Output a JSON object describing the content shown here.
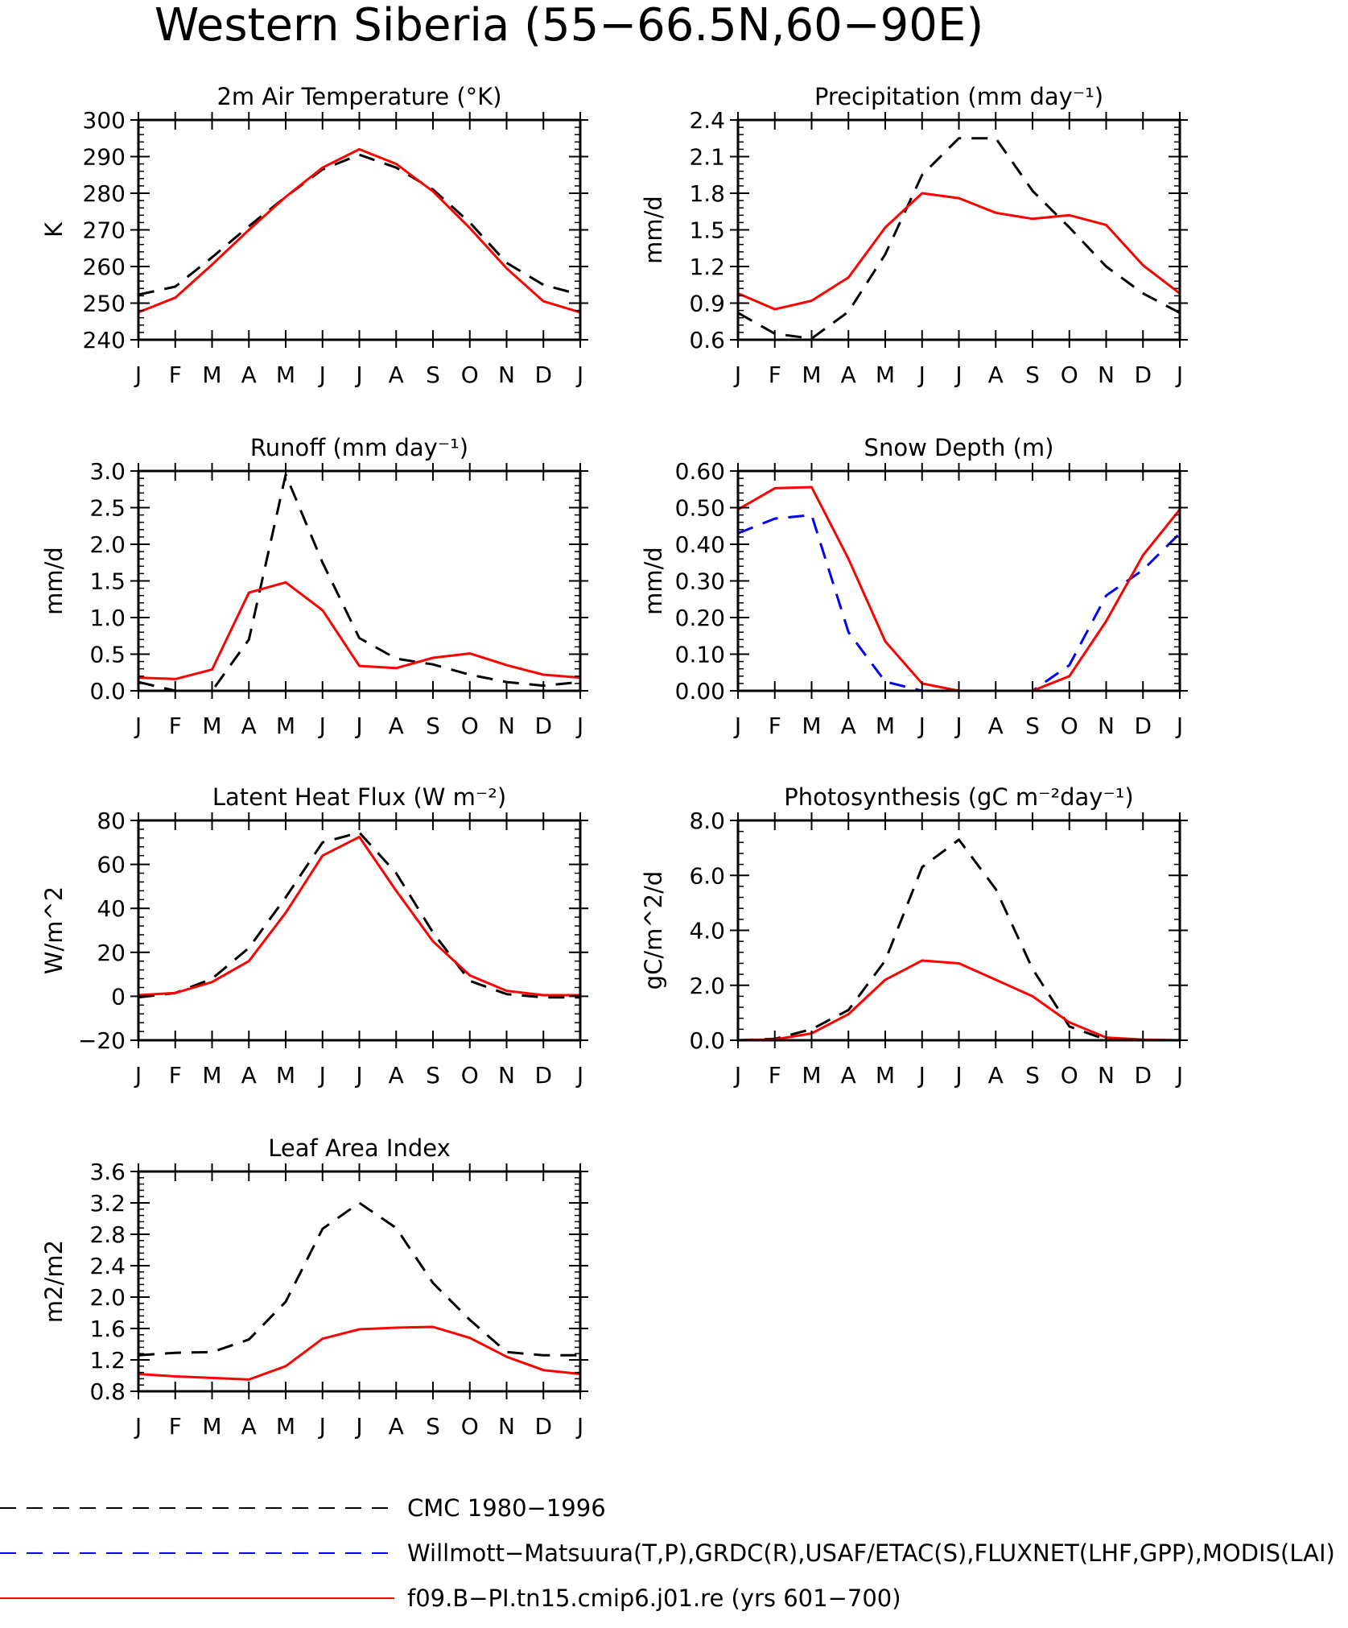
{
  "page_title": "Western Siberia (55−66.5N,60−90E)",
  "month_ticks": [
    "J",
    "F",
    "M",
    "A",
    "M",
    "J",
    "J",
    "A",
    "S",
    "O",
    "N",
    "D",
    "J"
  ],
  "legend": [
    {
      "label": "CMC 1980−1996",
      "color": "#000000",
      "style": "dashed"
    },
    {
      "label": "Willmott−Matsuura(T,P),GRDC(R),USAF/ETAC(S),FLUXNET(LHF,GPP),MODIS(LAI)",
      "color": "#0000ff",
      "style": "dashed"
    },
    {
      "label": "f09.B−PI.tn15.cmip6.j01.re (yrs 601−700)",
      "color": "#ff0000",
      "style": "solid"
    }
  ],
  "chart_data": [
    {
      "type": "line",
      "title": "2m Air Temperature (°K)",
      "ylabel": "K",
      "ylim": [
        240,
        300
      ],
      "yticks": [
        240,
        250,
        260,
        270,
        280,
        290,
        300
      ],
      "ytick_labels": [
        "240",
        "250",
        "260",
        "270",
        "280",
        "290",
        "300"
      ],
      "categories": [
        "J",
        "F",
        "M",
        "A",
        "M",
        "J",
        "J",
        "A",
        "S",
        "O",
        "N",
        "D",
        "J"
      ],
      "series": [
        {
          "ref": 0,
          "values": [
            252.3,
            254.5,
            262.5,
            271,
            279,
            286.5,
            290.5,
            287,
            281,
            272,
            261,
            255,
            252.3
          ]
        },
        {
          "ref": 2,
          "values": [
            247.5,
            251.5,
            260.5,
            270,
            279,
            287,
            292,
            288,
            280.5,
            270.5,
            259.5,
            250.5,
            247.5
          ]
        }
      ]
    },
    {
      "type": "line",
      "title": "Precipitation (mm day⁻¹)",
      "ylabel": "mm/d",
      "ylim": [
        0.6,
        2.4
      ],
      "yticks": [
        0.6,
        0.9,
        1.2,
        1.5,
        1.8,
        2.1,
        2.4
      ],
      "ytick_labels": [
        "0.6",
        "0.9",
        "1.2",
        "1.5",
        "1.8",
        "2.1",
        "2.4"
      ],
      "categories": [
        "J",
        "F",
        "M",
        "A",
        "M",
        "J",
        "J",
        "A",
        "S",
        "O",
        "N",
        "D",
        "J"
      ],
      "series": [
        {
          "ref": 0,
          "values": [
            0.82,
            0.65,
            0.61,
            0.83,
            1.3,
            1.95,
            2.25,
            2.25,
            1.82,
            1.52,
            1.2,
            0.98,
            0.82
          ]
        },
        {
          "ref": 2,
          "values": [
            0.98,
            0.85,
            0.92,
            1.11,
            1.52,
            1.8,
            1.76,
            1.64,
            1.59,
            1.62,
            1.54,
            1.21,
            0.98
          ]
        }
      ]
    },
    {
      "type": "line",
      "title": "Runoff (mm day⁻¹)",
      "ylabel": "mm/d",
      "ylim": [
        0,
        3.0
      ],
      "yticks": [
        0,
        0.5,
        1.0,
        1.5,
        2.0,
        2.5,
        3.0
      ],
      "ytick_labels": [
        "0.0",
        "0.5",
        "1.0",
        "1.5",
        "2.0",
        "2.5",
        "3.0"
      ],
      "categories": [
        "J",
        "F",
        "M",
        "A",
        "M",
        "J",
        "J",
        "A",
        "S",
        "O",
        "N",
        "D",
        "J"
      ],
      "series": [
        {
          "ref": 0,
          "values": [
            0.12,
            0.0,
            0.0,
            0.7,
            2.95,
            1.75,
            0.72,
            0.44,
            0.36,
            0.22,
            0.12,
            0.07,
            0.12
          ]
        },
        {
          "ref": 2,
          "values": [
            0.18,
            0.16,
            0.29,
            1.34,
            1.48,
            1.1,
            0.34,
            0.31,
            0.45,
            0.51,
            0.35,
            0.22,
            0.18
          ]
        }
      ]
    },
    {
      "type": "line",
      "title": "Snow Depth (m)",
      "ylabel": "mm/d",
      "ylim": [
        0,
        0.6
      ],
      "yticks": [
        0,
        0.1,
        0.2,
        0.3,
        0.4,
        0.5,
        0.6
      ],
      "ytick_labels": [
        "0.00",
        "0.10",
        "0.20",
        "0.30",
        "0.40",
        "0.50",
        "0.60"
      ],
      "categories": [
        "J",
        "F",
        "M",
        "A",
        "M",
        "J",
        "J",
        "A",
        "S",
        "O",
        "N",
        "D",
        "J"
      ],
      "series": [
        {
          "ref": 0,
          "values": [
            0,
            0,
            0,
            0,
            0,
            0,
            0,
            0,
            0,
            0,
            0,
            0,
            0
          ]
        },
        {
          "ref": 1,
          "values": [
            0.43,
            0.47,
            0.48,
            0.16,
            0.025,
            0,
            0,
            0,
            0,
            0.07,
            0.26,
            0.33,
            0.43
          ]
        },
        {
          "ref": 2,
          "values": [
            0.495,
            0.553,
            0.556,
            0.36,
            0.135,
            0.02,
            0,
            0,
            0,
            0.04,
            0.19,
            0.37,
            0.495
          ]
        }
      ]
    },
    {
      "type": "line",
      "title": "Latent Heat Flux (W m⁻²)",
      "ylabel": "W/m^2",
      "ylim": [
        -20,
        80
      ],
      "yticks": [
        -20,
        0,
        20,
        40,
        60,
        80
      ],
      "ytick_labels": [
        "−20",
        "0",
        "20",
        "40",
        "60",
        "80"
      ],
      "categories": [
        "J",
        "F",
        "M",
        "A",
        "M",
        "J",
        "J",
        "A",
        "S",
        "O",
        "N",
        "D",
        "J"
      ],
      "series": [
        {
          "ref": 0,
          "values": [
            -0.5,
            1.5,
            8,
            22,
            45,
            70,
            74.5,
            56,
            29,
            7,
            1,
            -0.5,
            -0.5
          ]
        },
        {
          "ref": 2,
          "values": [
            0.5,
            1.5,
            6.5,
            16,
            38,
            64,
            72.5,
            48,
            25,
            9.5,
            2.5,
            0.5,
            0.5
          ]
        }
      ]
    },
    {
      "type": "line",
      "title": "Photosynthesis (gC m⁻²day⁻¹)",
      "ylabel": "gC/m^2/d",
      "ylim": [
        0,
        8.0
      ],
      "yticks": [
        0,
        2,
        4,
        6,
        8
      ],
      "ytick_labels": [
        "0.0",
        "2.0",
        "4.0",
        "6.0",
        "8.0"
      ],
      "categories": [
        "J",
        "F",
        "M",
        "A",
        "M",
        "J",
        "J",
        "A",
        "S",
        "O",
        "N",
        "D",
        "J"
      ],
      "series": [
        {
          "ref": 0,
          "values": [
            0,
            0.05,
            0.4,
            1.1,
            2.9,
            6.3,
            7.3,
            5.5,
            2.6,
            0.5,
            0.02,
            0,
            0
          ]
        },
        {
          "ref": 2,
          "values": [
            0,
            0.03,
            0.25,
            0.95,
            2.2,
            2.9,
            2.8,
            2.2,
            1.6,
            0.65,
            0.1,
            0.02,
            0
          ]
        }
      ]
    },
    {
      "type": "line",
      "title": "Leaf Area Index",
      "ylabel": "m2/m2",
      "ylim": [
        0.8,
        3.6
      ],
      "yticks": [
        0.8,
        1.2,
        1.6,
        2.0,
        2.4,
        2.8,
        3.2,
        3.6
      ],
      "ytick_labels": [
        "0.8",
        "1.2",
        "1.6",
        "2.0",
        "2.4",
        "2.8",
        "3.2",
        "3.6"
      ],
      "categories": [
        "J",
        "F",
        "M",
        "A",
        "M",
        "J",
        "J",
        "A",
        "S",
        "O",
        "N",
        "D",
        "J"
      ],
      "series": [
        {
          "ref": 0,
          "values": [
            1.26,
            1.29,
            1.3,
            1.46,
            1.94,
            2.87,
            3.2,
            2.88,
            2.18,
            1.71,
            1.3,
            1.26,
            1.26
          ]
        },
        {
          "ref": 2,
          "values": [
            1.02,
            0.99,
            0.97,
            0.95,
            1.12,
            1.47,
            1.59,
            1.61,
            1.62,
            1.48,
            1.24,
            1.07,
            1.02
          ]
        }
      ]
    }
  ]
}
